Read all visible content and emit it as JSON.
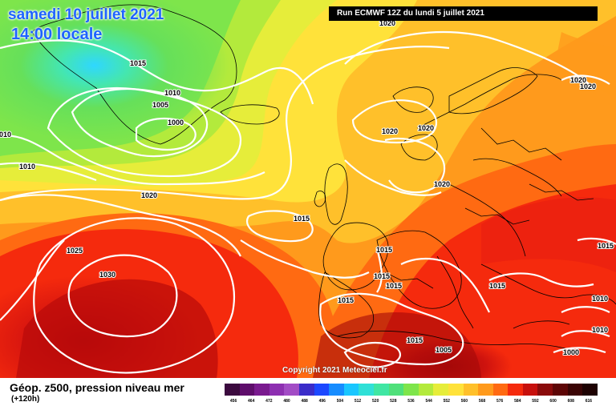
{
  "title": {
    "date": "samedi 10 juillet 2021",
    "time": "14:00 locale"
  },
  "run_info": "Run ECMWF 12Z du lundi 5 juillet 2021",
  "copyright": "Copyright 2021 Meteociel.fr",
  "legend": {
    "title": "Géop. z500, pression niveau mer",
    "subtitle": "(+120h)",
    "scale_values": [
      "456",
      "464",
      "472",
      "480",
      "488",
      "496",
      "504",
      "512",
      "520",
      "528",
      "536",
      "544",
      "552",
      "560",
      "568",
      "576",
      "584",
      "592",
      "600",
      "608",
      "616"
    ],
    "scale_colors": [
      "#3b0a3e",
      "#5e0d6b",
      "#7a1a8f",
      "#8d2fb1",
      "#a24cc5",
      "#3a2cc9",
      "#1c48ff",
      "#168cff",
      "#19c6ff",
      "#2fe0d7",
      "#3fe6a3",
      "#4fe07a",
      "#7ee54b",
      "#b3ea3c",
      "#e6ed3a",
      "#ffe23a",
      "#ffc02a",
      "#ff9a1c",
      "#ff6a12",
      "#f52a0d",
      "#c7100d",
      "#8a0b0b",
      "#5e0606",
      "#3a0404",
      "#1e0202"
    ]
  },
  "isobars": [
    "1015",
    "1010",
    "1005",
    "1000",
    "1010",
    "1010",
    "1020",
    "1020",
    "1020",
    "1015",
    "1025",
    "1030",
    "1015",
    "1015",
    "1015",
    "1015",
    "1015",
    "1020",
    "1020",
    "1020",
    "1020",
    "1010",
    "1010",
    "1000",
    "1005",
    "1015",
    "1015"
  ]
}
